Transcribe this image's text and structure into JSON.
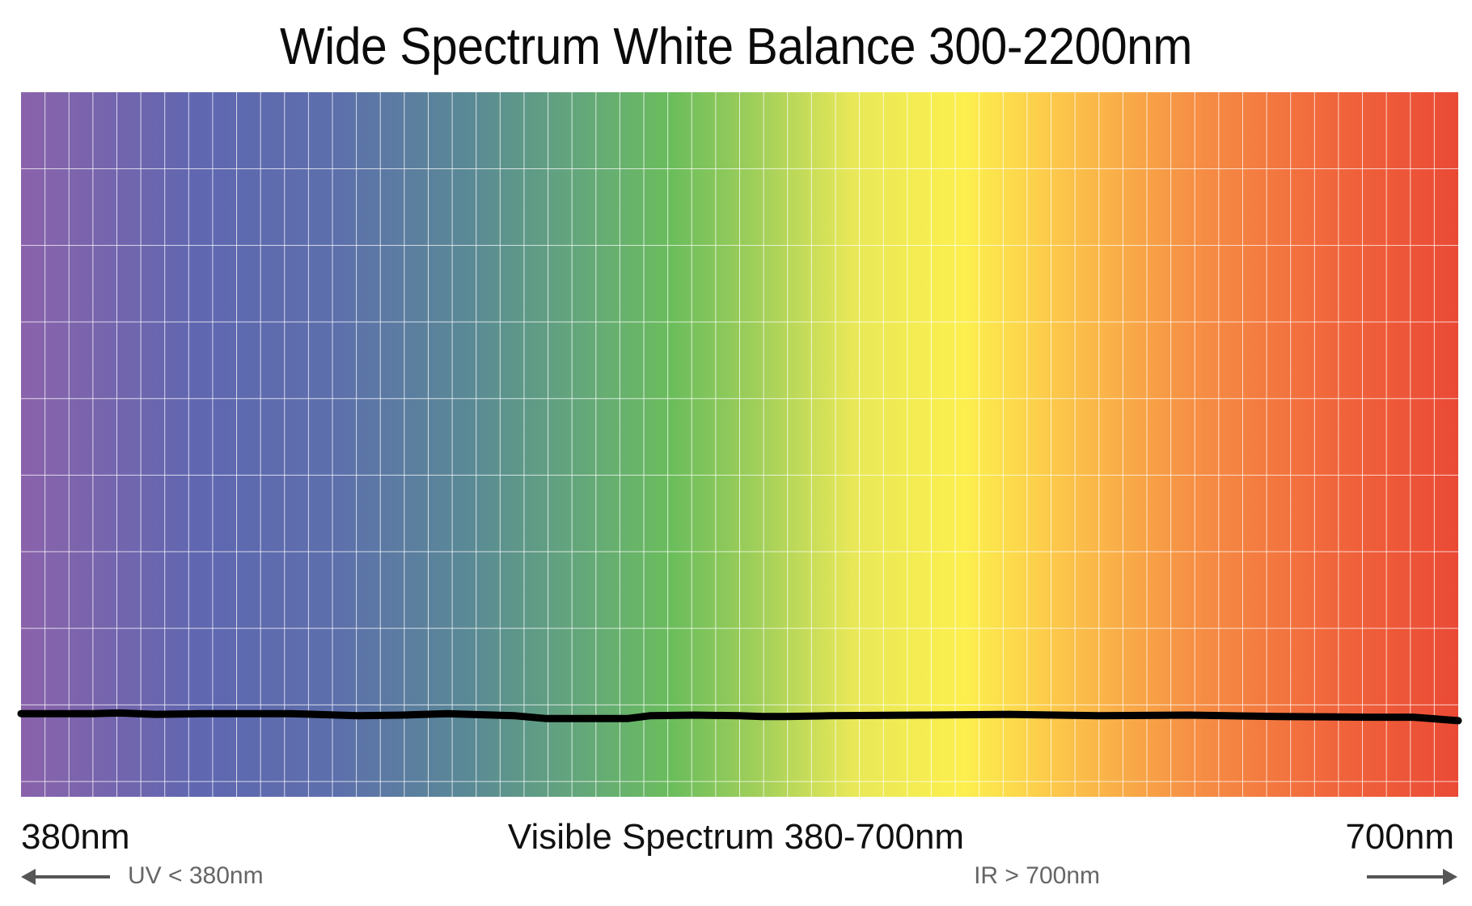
{
  "title": "Wide Spectrum White Balance 300-2200nm",
  "labels": {
    "left": "380nm",
    "center": "Visible Spectrum 380-700nm",
    "right": "700nm",
    "uv": "UV < 380nm",
    "ir": "IR > 700nm"
  },
  "colors": {
    "spectrum_stops": [
      {
        "nm": 380,
        "color": "#8a63ab"
      },
      {
        "nm": 420,
        "color": "#5f67b0"
      },
      {
        "nm": 450,
        "color": "#5d6fac"
      },
      {
        "nm": 480,
        "color": "#5a8a95"
      },
      {
        "nm": 505,
        "color": "#64a87a"
      },
      {
        "nm": 525,
        "color": "#6bbd5c"
      },
      {
        "nm": 545,
        "color": "#a4d05a"
      },
      {
        "nm": 565,
        "color": "#e8e858"
      },
      {
        "nm": 590,
        "color": "#fcef4e"
      },
      {
        "nm": 610,
        "color": "#fcc84a"
      },
      {
        "nm": 640,
        "color": "#f69145"
      },
      {
        "nm": 670,
        "color": "#f1683c"
      },
      {
        "nm": 700,
        "color": "#ea4a35"
      }
    ],
    "curve": "#000000",
    "grid": "#ffffff"
  },
  "chart_data": {
    "type": "line",
    "title": "Wide Spectrum White Balance 300-2200nm",
    "xlabel": "Visible Spectrum 380-700nm",
    "ylabel": "",
    "xlim": [
      380,
      700
    ],
    "ylim": [
      0,
      1
    ],
    "grid": true,
    "legend": "none",
    "series": [
      {
        "values_x": [
          380,
          396,
          402,
          410,
          420,
          440,
          455,
          465,
          475,
          480,
          490,
          497,
          500,
          515,
          520,
          530,
          540,
          545,
          550,
          560,
          580,
          600,
          620,
          640,
          660,
          680,
          690,
          700
        ],
        "values_y": [
          0.118,
          0.118,
          0.119,
          0.117,
          0.118,
          0.118,
          0.115,
          0.116,
          0.118,
          0.117,
          0.115,
          0.111,
          0.111,
          0.111,
          0.115,
          0.116,
          0.115,
          0.114,
          0.114,
          0.115,
          0.116,
          0.117,
          0.115,
          0.116,
          0.114,
          0.113,
          0.113,
          0.108
        ]
      }
    ]
  }
}
